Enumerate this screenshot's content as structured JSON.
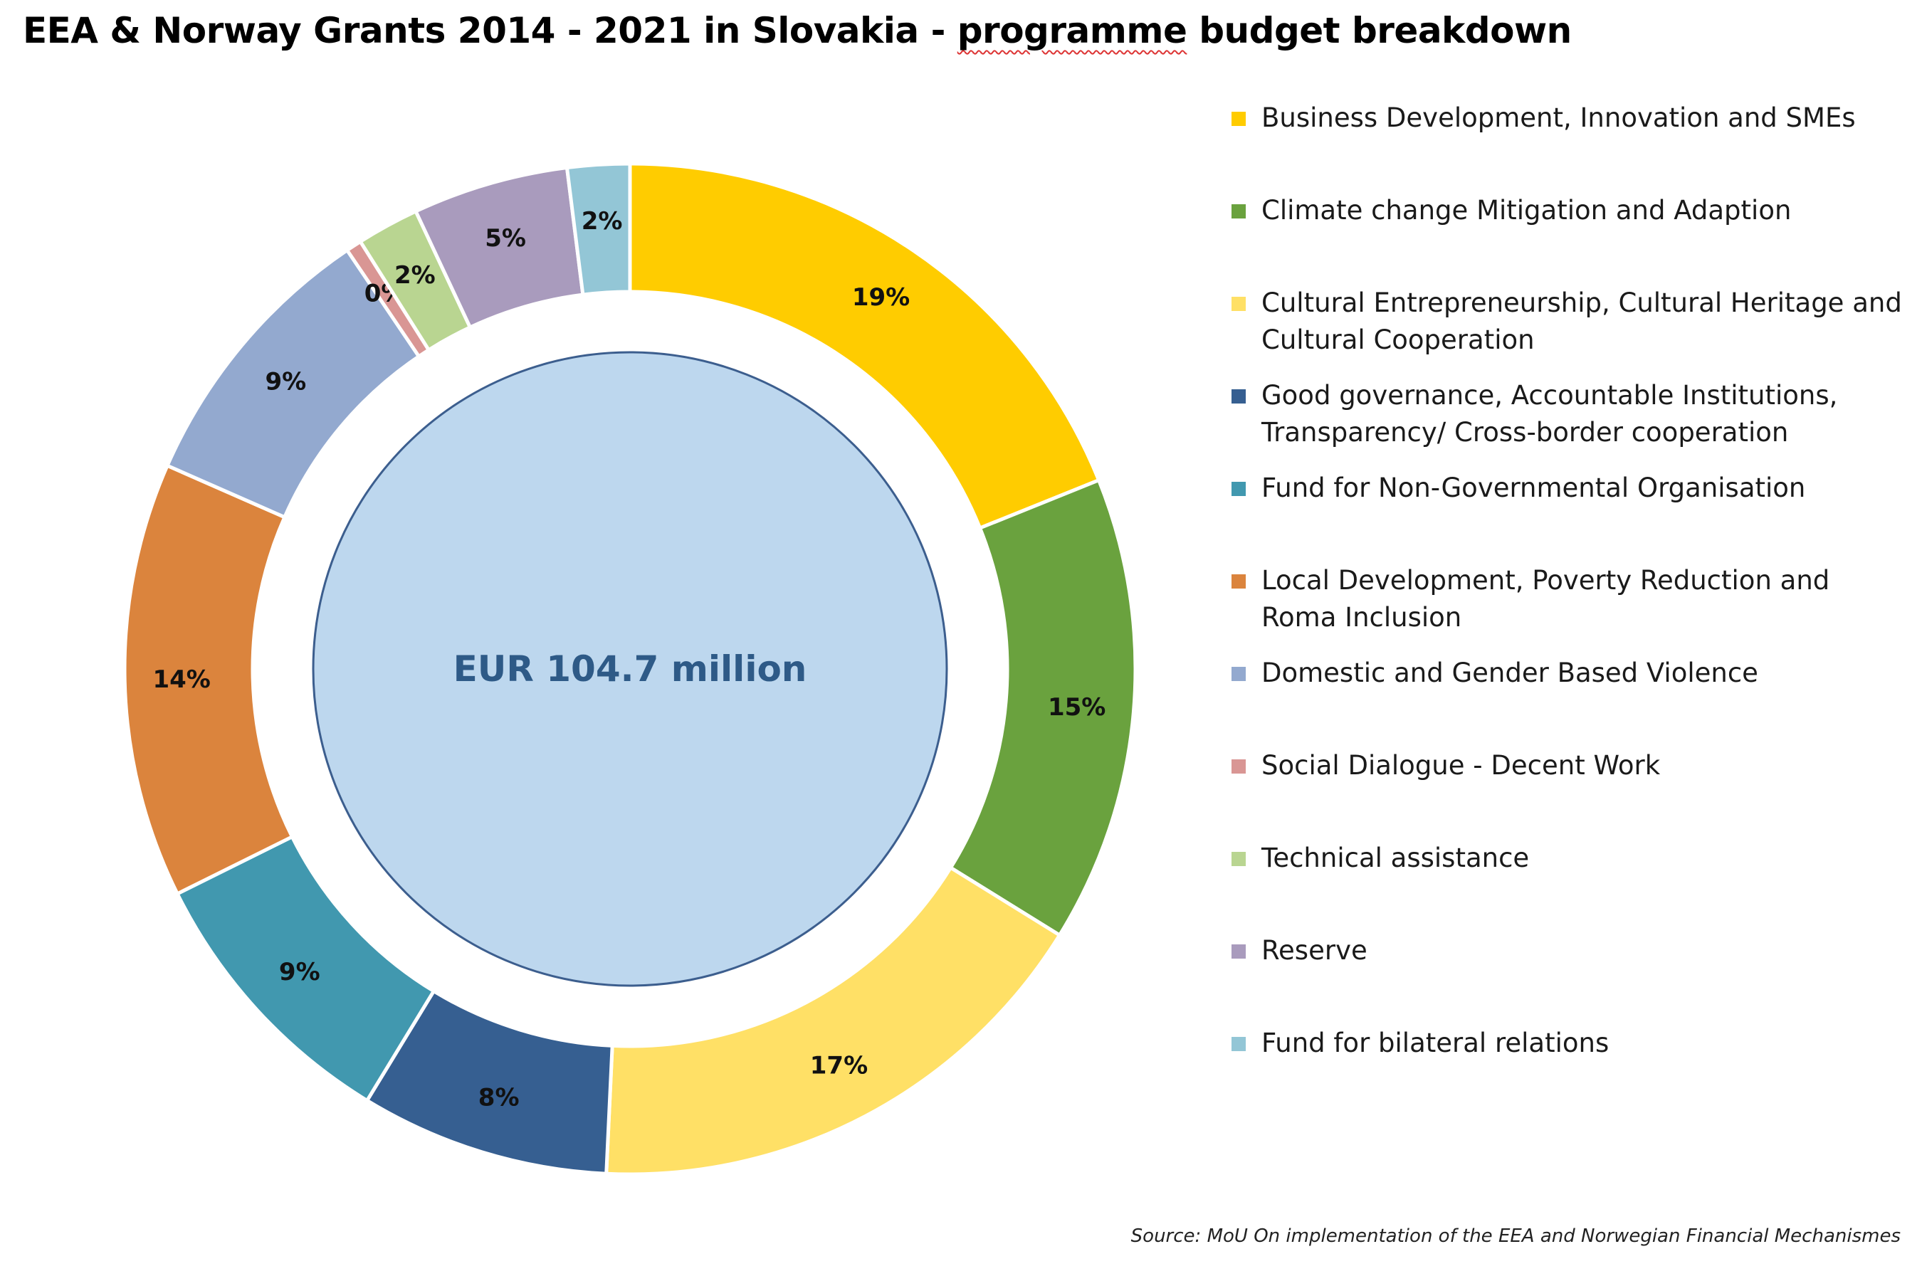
{
  "chart_data": {
    "type": "donut",
    "title": "EEA & Norway Grants 2014 - 2021 in Slovakia - programme budget breakdown",
    "center_label": "EUR 104.7 million",
    "source": "Source: MoU On implementation of the EEA and Norwegian Financial Mechanismes",
    "legend_position": "right",
    "series": [
      {
        "name": "Business Development, Innovation and SMEs",
        "value": 19,
        "label": "19%",
        "color": "#FFCC00"
      },
      {
        "name": "Climate change Mitigation and Adaption",
        "value": 15,
        "label": "15%",
        "color": "#6AA23E"
      },
      {
        "name": "Cultural Entrepreneurship, Cultural Heritage and Cultural Cooperation",
        "value": 17,
        "label": "17%",
        "color": "#FFE066"
      },
      {
        "name": "Good governance, Accountable Institutions, Transparency/ Cross-border cooperation",
        "value": 8,
        "label": "8%",
        "color": "#365F91"
      },
      {
        "name": "Fund for Non-Governmental Organisation",
        "value": 9,
        "label": "9%",
        "color": "#4198AF"
      },
      {
        "name": "Local Development, Poverty Reduction and Roma Inclusion",
        "value": 14,
        "label": "14%",
        "color": "#DB843D"
      },
      {
        "name": "Domestic and Gender Based Violence",
        "value": 9,
        "label": "9%",
        "color": "#93A9CF"
      },
      {
        "name": "Social Dialogue - Decent Work",
        "value": 0.5,
        "label": "0%",
        "color": "#D99694"
      },
      {
        "name": "Technical assistance",
        "value": 2,
        "label": "2%",
        "color": "#B9D591"
      },
      {
        "name": "Reserve",
        "value": 5,
        "label": "5%",
        "color": "#A99BBD"
      },
      {
        "name": "Fund for bilateral relations",
        "value": 2,
        "label": "2%",
        "color": "#93C6D6"
      }
    ]
  }
}
